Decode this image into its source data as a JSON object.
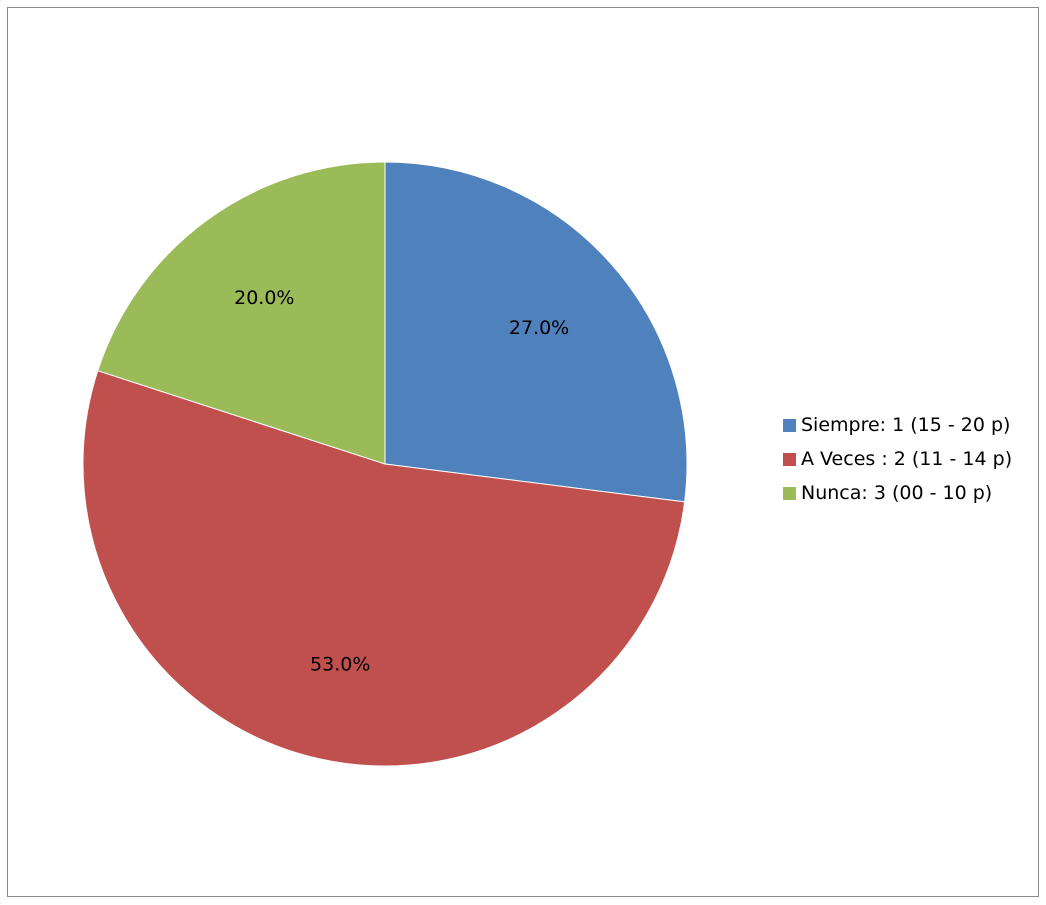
{
  "chart_data": {
    "type": "pie",
    "title": "",
    "start_angle_deg": 0,
    "direction": "clockwise",
    "legend_position": "right",
    "slices": [
      {
        "label": "Siempre: 1 (15 - 20 p)",
        "value": 27.0,
        "display": "27.0%",
        "color": "#4F81BD"
      },
      {
        "label": "A Veces : 2 (11 - 14 p)",
        "value": 53.0,
        "display": "53.0%",
        "color": "#C0504D"
      },
      {
        "label": "Nunca: 3 (00 - 10 p)",
        "value": 20.0,
        "display": "20.0%",
        "color": "#9BBB59"
      }
    ]
  }
}
